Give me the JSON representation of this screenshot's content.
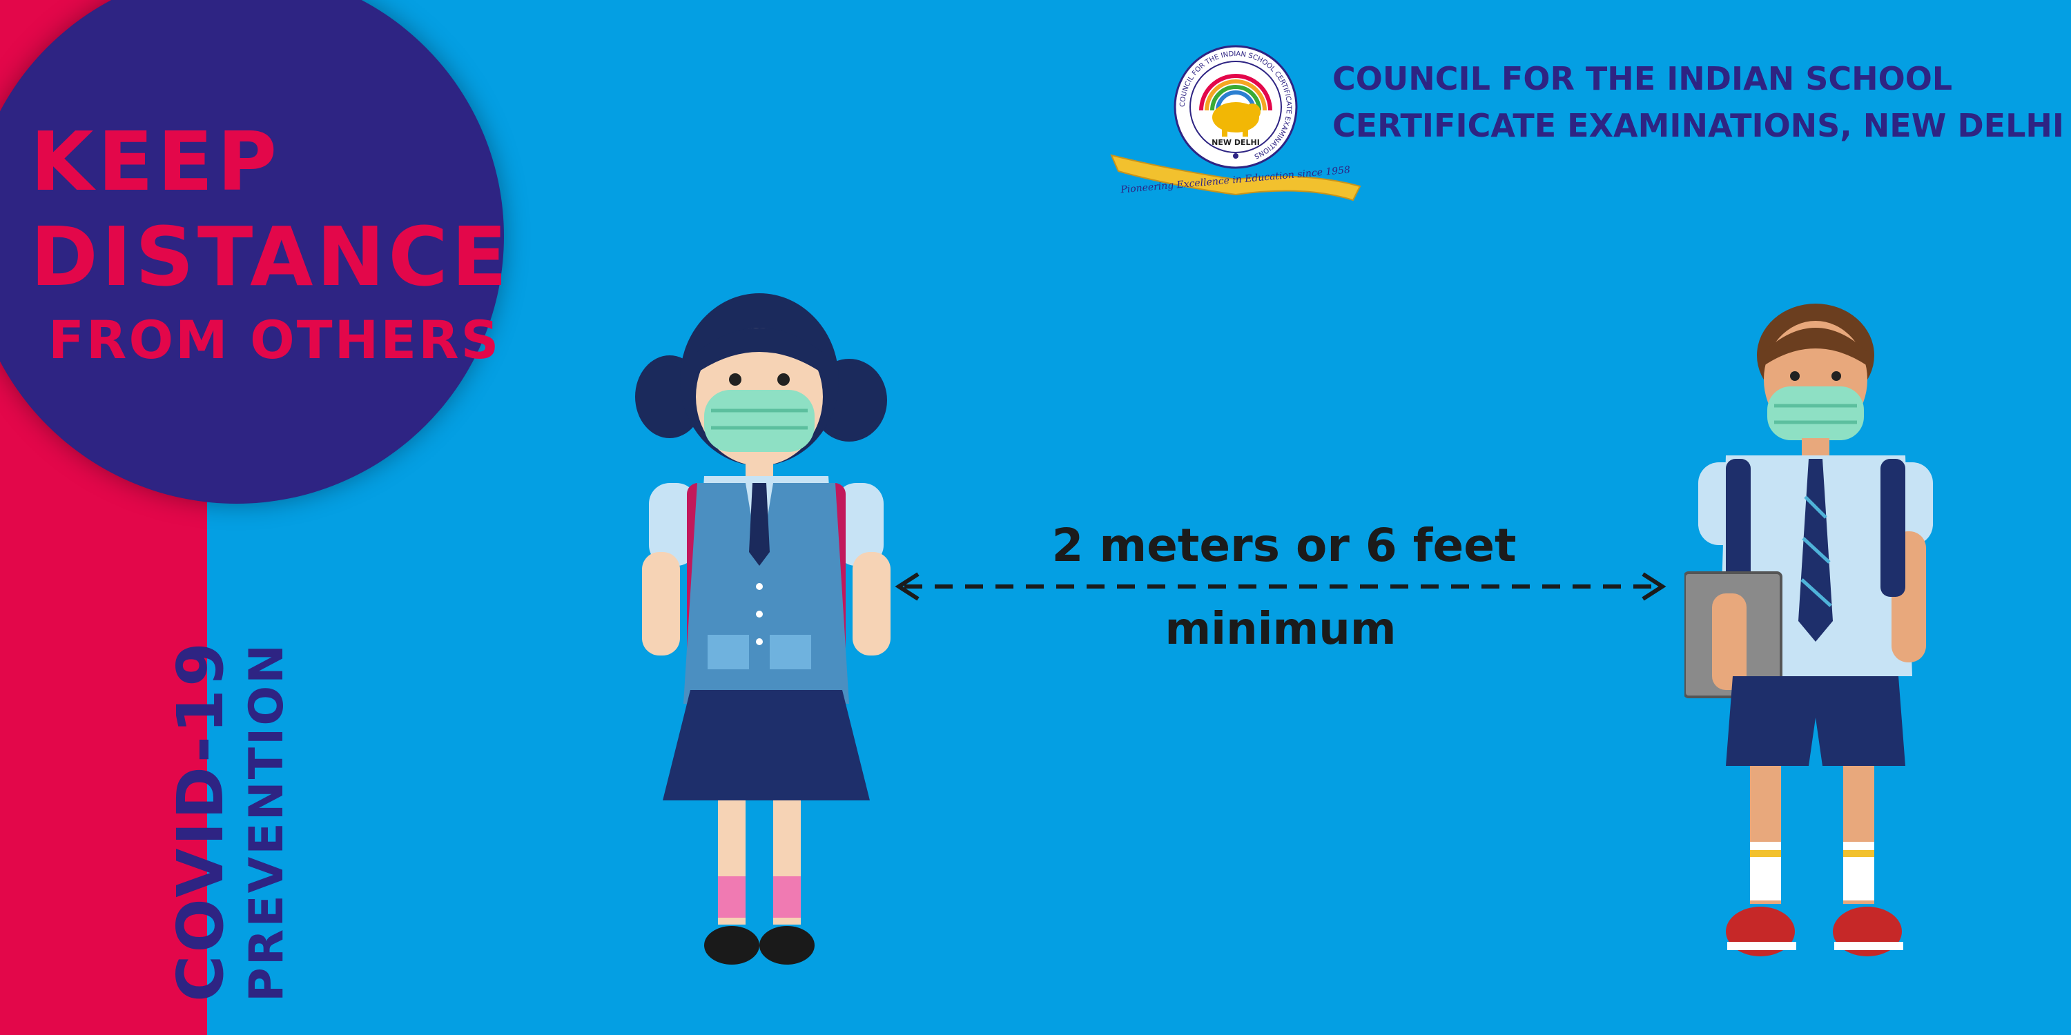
{
  "banner": {
    "headline_line1": "KEEP",
    "headline_line2": "DISTANCE",
    "headline_line3": "FROM OTHERS",
    "side_title": "COVID-19",
    "side_subtitle": "PREVENTION"
  },
  "organization": {
    "name_line1": "COUNCIL FOR THE INDIAN SCHOOL",
    "name_line2": "CERTIFICATE EXAMINATIONS, NEW DELHI",
    "logo_ring_text": "COUNCIL FOR THE INDIAN SCHOOL CERTIFICATE EXAMINATIONS",
    "logo_center_text": "NEW DELHI",
    "logo_ribbon_text": "Pioneering Excellence in Education since 1958"
  },
  "distance": {
    "line1": "2 meters or 6 feet",
    "line2": "minimum"
  },
  "colors": {
    "background": "#049fe3",
    "sidebar": "#e3074a",
    "circle": "#2e2483",
    "accent_text": "#2e2483",
    "label_text": "#1b1b1b"
  },
  "illustrations": {
    "left": "schoolgirl-with-mask",
    "right": "schoolboy-with-mask"
  }
}
